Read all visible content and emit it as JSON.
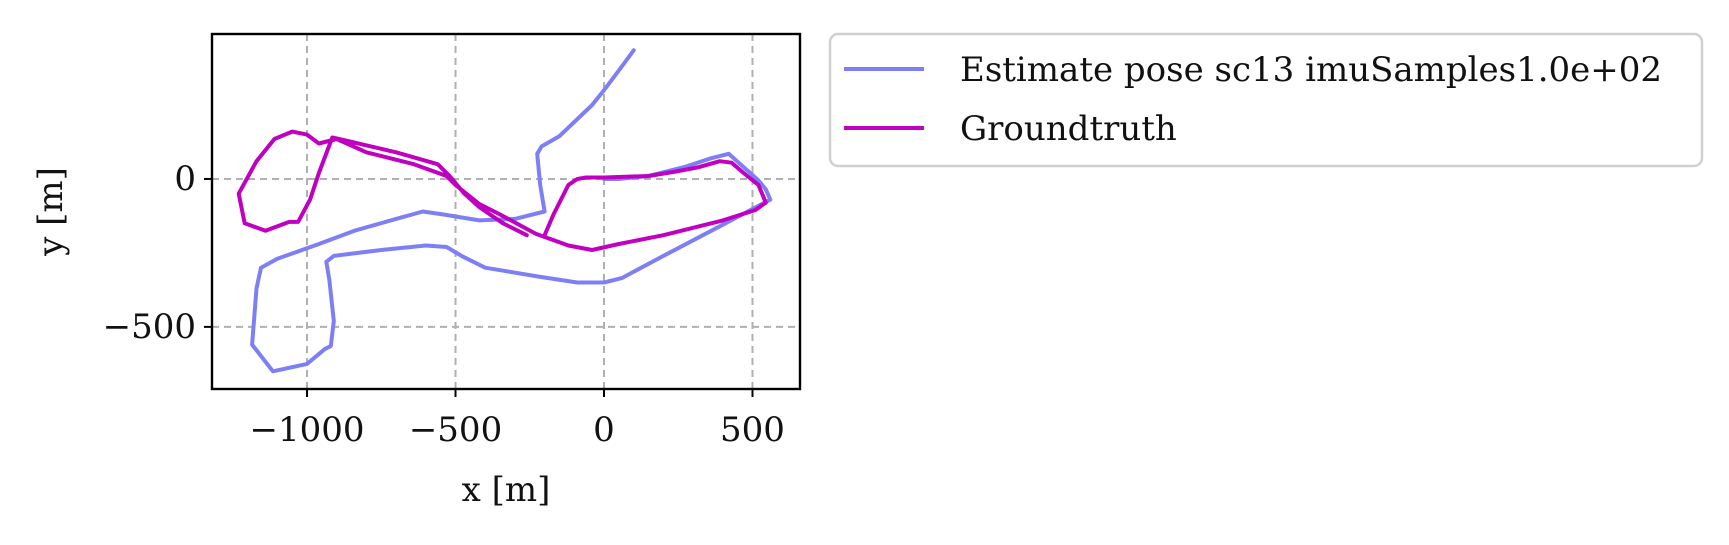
{
  "chart_data": {
    "type": "line",
    "xlabel": "x [m]",
    "ylabel": "y [m]",
    "xlim": [
      -1320,
      660
    ],
    "ylim": [
      -710,
      490
    ],
    "xticks": [
      -1000,
      -500,
      0,
      500
    ],
    "xtick_labels": [
      "−1000",
      "−500",
      "0",
      "500"
    ],
    "yticks": [
      -500,
      0
    ],
    "ytick_labels": [
      "−500",
      "0"
    ],
    "grid": true,
    "legend_position": "outside-right-top",
    "series": [
      {
        "name": "Estimate pose sc13 imuSamples1.0e+02",
        "color": "#7f7ff5",
        "points": [
          [
            100,
            435
          ],
          [
            60,
            380
          ],
          [
            0,
            300
          ],
          [
            -40,
            250
          ],
          [
            -150,
            145
          ],
          [
            -210,
            110
          ],
          [
            -225,
            85
          ],
          [
            -215,
            -20
          ],
          [
            -200,
            -110
          ],
          [
            -260,
            -125
          ],
          [
            -300,
            -135
          ],
          [
            -420,
            -140
          ],
          [
            -540,
            -120
          ],
          [
            -610,
            -110
          ],
          [
            -700,
            -135
          ],
          [
            -840,
            -175
          ],
          [
            -960,
            -220
          ],
          [
            -1100,
            -270
          ],
          [
            -1155,
            -300
          ],
          [
            -1170,
            -370
          ],
          [
            -1185,
            -560
          ],
          [
            -1115,
            -650
          ],
          [
            -1000,
            -625
          ],
          [
            -940,
            -575
          ],
          [
            -920,
            -565
          ],
          [
            -910,
            -480
          ],
          [
            -925,
            -340
          ],
          [
            -935,
            -280
          ],
          [
            -910,
            -260
          ],
          [
            -750,
            -240
          ],
          [
            -600,
            -225
          ],
          [
            -530,
            -230
          ],
          [
            -480,
            -260
          ],
          [
            -400,
            -300
          ],
          [
            -220,
            -330
          ],
          [
            -90,
            -350
          ],
          [
            0,
            -350
          ],
          [
            60,
            -335
          ],
          [
            200,
            -260
          ],
          [
            390,
            -160
          ],
          [
            540,
            -80
          ],
          [
            560,
            -70
          ],
          [
            545,
            -35
          ],
          [
            520,
            -5
          ],
          [
            470,
            40
          ],
          [
            420,
            85
          ],
          [
            360,
            70
          ],
          [
            270,
            40
          ],
          [
            150,
            10
          ],
          [
            50,
            0
          ],
          [
            0,
            0
          ]
        ]
      },
      {
        "name": "Groundtruth",
        "color": "#c000c0",
        "points": [
          [
            -200,
            -190
          ],
          [
            -170,
            -120
          ],
          [
            -120,
            -20
          ],
          [
            -90,
            0
          ],
          [
            -60,
            5
          ],
          [
            0,
            5
          ],
          [
            150,
            10
          ],
          [
            240,
            25
          ],
          [
            320,
            40
          ],
          [
            390,
            60
          ],
          [
            430,
            55
          ],
          [
            470,
            20
          ],
          [
            520,
            -20
          ],
          [
            545,
            -80
          ],
          [
            510,
            -105
          ],
          [
            400,
            -140
          ],
          [
            200,
            -190
          ],
          [
            50,
            -220
          ],
          [
            -40,
            -240
          ],
          [
            -120,
            -225
          ],
          [
            -230,
            -185
          ],
          [
            -350,
            -120
          ],
          [
            -420,
            -85
          ],
          [
            -500,
            -20
          ],
          [
            -530,
            10
          ],
          [
            -640,
            50
          ],
          [
            -800,
            90
          ],
          [
            -900,
            135
          ],
          [
            -960,
            120
          ],
          [
            -1000,
            150
          ],
          [
            -1050,
            160
          ],
          [
            -1110,
            135
          ],
          [
            -1170,
            60
          ],
          [
            -1230,
            -50
          ],
          [
            -1210,
            -150
          ],
          [
            -1140,
            -175
          ],
          [
            -1060,
            -145
          ],
          [
            -1030,
            -145
          ],
          [
            -990,
            -70
          ],
          [
            -960,
            20
          ],
          [
            -915,
            140
          ],
          [
            -870,
            130
          ],
          [
            -700,
            90
          ],
          [
            -560,
            50
          ],
          [
            -520,
            10
          ],
          [
            -470,
            -50
          ],
          [
            -420,
            -95
          ],
          [
            -340,
            -150
          ],
          [
            -260,
            -190
          ]
        ]
      }
    ]
  }
}
